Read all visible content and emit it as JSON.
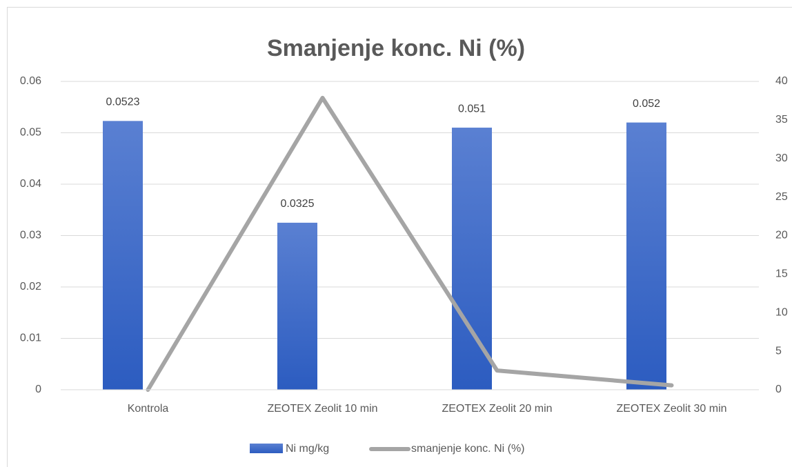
{
  "chart_data": {
    "type": "bar_line",
    "title": "Smanjenje konc. Ni (%)",
    "categories": [
      "Kontrola",
      "ZEOTEX Zeolit 10 min",
      "ZEOTEX Zeolit 20 min",
      "ZEOTEX Zeolit 30 min"
    ],
    "series": [
      {
        "name": "Ni mg/kg",
        "type": "bar",
        "color": "#4472c4",
        "values": [
          0.0523,
          0.0325,
          0.051,
          0.052
        ]
      },
      {
        "name": "smanjenje konc. Ni (%)",
        "type": "line",
        "axis": "y2",
        "color": "#a5a5a5",
        "values": [
          0,
          37.86,
          2.49,
          0.57
        ]
      }
    ],
    "ylim": [
      0,
      0.06
    ],
    "yticks": [
      0,
      0.01,
      0.02,
      0.03,
      0.04,
      0.05,
      0.06
    ],
    "y2lim": [
      0,
      40
    ],
    "y2ticks": [
      0,
      5,
      10,
      15,
      20,
      25,
      30,
      35,
      40
    ],
    "grid": true,
    "legend": "bottom"
  }
}
